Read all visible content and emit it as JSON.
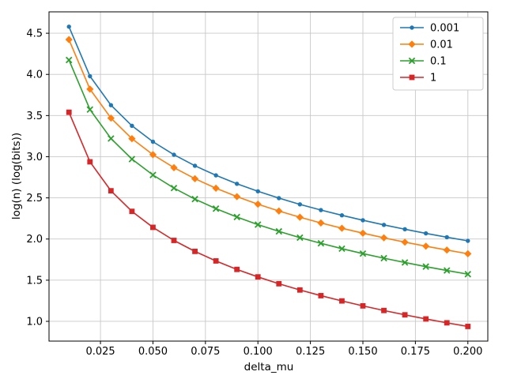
{
  "chart_data": {
    "type": "line",
    "title": "",
    "xlabel": "delta_mu",
    "ylabel": "log(n) (log(bits))",
    "grid": true,
    "legend_position": "upper right",
    "xlim": [
      0.0005,
      0.2095
    ],
    "ylim": [
      0.76,
      4.76
    ],
    "xtick_values": [
      0.025,
      0.05,
      0.075,
      0.1,
      0.125,
      0.15,
      0.175,
      0.2
    ],
    "xtick_labels": [
      "0.025",
      "0.050",
      "0.075",
      "0.100",
      "0.125",
      "0.150",
      "0.175",
      "0.200"
    ],
    "ytick_values": [
      1.0,
      1.5,
      2.0,
      2.5,
      3.0,
      3.5,
      4.0,
      4.5
    ],
    "ytick_labels": [
      "1.0",
      "1.5",
      "2.0",
      "2.5",
      "3.0",
      "3.5",
      "4.0",
      "4.5"
    ],
    "x": [
      0.01,
      0.02,
      0.03,
      0.04,
      0.05,
      0.06,
      0.07,
      0.08,
      0.09,
      0.1,
      0.11,
      0.12,
      0.13,
      0.14,
      0.15,
      0.16,
      0.17,
      0.18,
      0.19,
      0.2
    ],
    "series": [
      {
        "name": "0.001",
        "color": "#1f77b4",
        "marker": "circle",
        "values": [
          4.58,
          3.978,
          3.626,
          3.376,
          3.182,
          3.024,
          2.89,
          2.774,
          2.671,
          2.58,
          2.497,
          2.421,
          2.352,
          2.288,
          2.228,
          2.172,
          2.119,
          2.069,
          2.022,
          1.978
        ]
      },
      {
        "name": "0.01",
        "color": "#ff7f0e",
        "marker": "diamond",
        "values": [
          4.423,
          3.821,
          3.469,
          3.219,
          3.025,
          2.867,
          2.733,
          2.617,
          2.515,
          2.423,
          2.34,
          2.265,
          2.195,
          2.131,
          2.071,
          2.015,
          1.962,
          1.913,
          1.866,
          1.821
        ]
      },
      {
        "name": "0.1",
        "color": "#2ca02c",
        "marker": "x",
        "values": [
          4.175,
          3.573,
          3.221,
          2.971,
          2.778,
          2.619,
          2.485,
          2.369,
          2.267,
          2.175,
          2.093,
          2.017,
          1.948,
          1.883,
          1.823,
          1.767,
          1.715,
          1.665,
          1.618,
          1.573
        ]
      },
      {
        "name": "1",
        "color": "#d62728",
        "marker": "square",
        "values": [
          3.54,
          2.938,
          2.586,
          2.336,
          2.142,
          1.983,
          1.85,
          1.734,
          1.631,
          1.54,
          1.457,
          1.381,
          1.312,
          1.248,
          1.188,
          1.132,
          1.079,
          1.029,
          0.982,
          0.938
        ]
      }
    ],
    "style": {
      "grid_color": "#c8c8c8",
      "spine_color": "#000000",
      "legend_border_color": "#cccccc",
      "legend_bg": "#ffffff",
      "text_color": "#000000"
    }
  }
}
